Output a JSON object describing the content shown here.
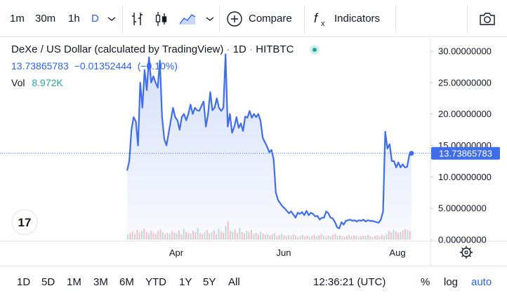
{
  "toolbar": {
    "intervals": [
      "1m",
      "30m",
      "1h",
      "D"
    ],
    "compare_label": "Compare",
    "indicators_label": "Indicators"
  },
  "legend": {
    "title": "DeXe / US Dollar (calculated by TradingView)",
    "interval": "1D",
    "exchange": "HITBTC",
    "price": "13.73865783",
    "change": "−0.01352444",
    "change_pct": "(−0.10%)",
    "vol_label": "Vol",
    "vol_value": "8.972K",
    "logo_text": "17"
  },
  "colors": {
    "line": "#3f6ee8",
    "price_label_bg": "#3f6ee8",
    "volume": "#f5c6c3",
    "volume_alt": "#b9e3dc",
    "accent": "#2962ff"
  },
  "chart_data": {
    "type": "area",
    "ylim": [
      0,
      31
    ],
    "ytick_labels": [
      "30.00000000",
      "25.00000000",
      "20.00000000",
      "15.00000000",
      "10.00000000",
      "5.00000000",
      "0.00000000"
    ],
    "yticks": [
      30,
      25,
      20,
      15,
      10,
      5,
      0
    ],
    "x_labels": [
      "Apr",
      "Jun",
      "Aug"
    ],
    "last_price_label": "13.73865783",
    "last_price": 13.74,
    "series": [
      {
        "values": [
          11,
          12.5,
          17.5,
          19.5,
          18.8,
          15,
          25,
          21,
          27,
          23.8,
          29,
          25,
          26,
          25,
          24.2,
          28.5,
          19.5,
          16,
          15,
          17,
          19,
          21,
          19.5,
          19,
          17.5,
          19.5,
          20,
          19,
          20,
          21.5,
          20,
          21,
          20.6,
          20.5,
          21.3,
          22,
          18,
          20,
          23.5,
          20.6,
          21,
          22.5,
          21,
          20.5,
          21,
          29.5,
          18,
          20,
          17,
          18,
          19.5,
          17.8,
          18.5,
          17.3,
          19.6,
          19.4,
          20.5,
          19.4,
          20,
          19.5,
          20,
          18.9,
          16.2,
          15.5,
          14.8,
          13.9,
          14.3,
          12.8,
          7.5,
          6.3,
          5.8,
          5.3,
          5,
          4.6,
          4.2,
          4.5,
          4,
          3.5,
          4.3,
          4.1,
          4.4,
          3.9,
          4.6,
          3.9,
          4.3,
          4.1,
          3.7,
          3.8,
          3.2,
          3.5,
          3.5,
          4.5,
          4.2,
          3.5,
          3.4,
          2.8,
          2,
          1.8,
          2.8,
          2.4,
          3,
          3.1,
          3.2,
          3,
          3.1,
          2.9,
          3.1,
          3,
          3.2,
          2.9,
          3.1,
          3,
          3,
          2.9,
          2.8,
          2.7,
          3.2,
          4.5,
          17.2,
          14.5,
          15.2,
          12.5,
          12.5,
          11.5,
          12.3,
          11.5,
          12,
          11.5,
          11.6,
          13.5,
          13.74
        ]
      }
    ],
    "volume": [
      0.28,
      0.35,
      0.42,
      0.3,
      0.5,
      0.38,
      0.45,
      0.55,
      0.4,
      0.32,
      0.48,
      0.36,
      0.3,
      0.44,
      0.52,
      0.38,
      0.29,
      0.35,
      0.3,
      0.42,
      0.37,
      0.33,
      0.48,
      0.28,
      0.55,
      0.4,
      0.36,
      0.31,
      0.45,
      0.39,
      0.6,
      0.35,
      0.3,
      0.42,
      0.5,
      0.33,
      0.38,
      0.47,
      0.3,
      0.55,
      0.42,
      0.36,
      0.7,
      0.95,
      0.45,
      0.4,
      0.52,
      0.35,
      0.62,
      0.4,
      0.33,
      0.45,
      0.38,
      0.5,
      0.3,
      0.35,
      0.28,
      0.4,
      0.33,
      0.25,
      0.3,
      0.22,
      0.28,
      0.35,
      0.2,
      0.25,
      0.3,
      0.22,
      0.18,
      0.25,
      0.2,
      0.28,
      0.22,
      0.15,
      0.2,
      0.25,
      0.18,
      0.22,
      0.15,
      0.2,
      0.25,
      0.18,
      0.22,
      0.28,
      0.2,
      0.15,
      0.22,
      0.18,
      0.25,
      0.3,
      0.2,
      0.22,
      0.18,
      0.15,
      0.2,
      0.25,
      0.18,
      0.22,
      0.2,
      0.15,
      0.18,
      0.22,
      0.2,
      0.25,
      0.18,
      0.15,
      0.2,
      0.22,
      0.18,
      0.25,
      0.2,
      0.3,
      0.45,
      0.38,
      0.5,
      0.42,
      0.35,
      0.4,
      0.48,
      0.55,
      0.5,
      0.45
    ]
  },
  "bottombar": {
    "ranges": [
      "1D",
      "5D",
      "1M",
      "3M",
      "6M",
      "YTD",
      "1Y",
      "5Y",
      "All"
    ],
    "time": "12:36:21 (UTC)",
    "pct": "%",
    "log": "log",
    "auto": "auto"
  }
}
